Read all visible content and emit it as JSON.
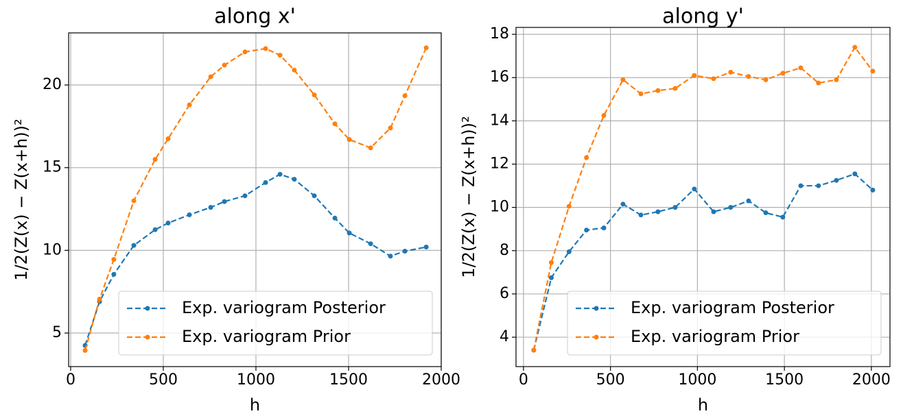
{
  "chart_data": [
    {
      "type": "line",
      "title": "along x'",
      "xlabel": "h",
      "ylabel": "1/2(Z(x) − Z(x+h))²",
      "x": [
        78,
        156,
        233,
        341,
        456,
        526,
        641,
        756,
        830,
        941,
        1052,
        1130,
        1207,
        1315,
        1426,
        1504,
        1619,
        1726,
        1804,
        1919
      ],
      "series": [
        {
          "name": "Exp. variogram Posterior",
          "color": "#1f77b4",
          "values": [
            4.25,
            6.9,
            8.55,
            10.3,
            11.25,
            11.65,
            12.15,
            12.6,
            12.95,
            13.3,
            14.1,
            14.6,
            14.3,
            13.3,
            11.95,
            11.05,
            10.4,
            9.65,
            9.95,
            10.2
          ]
        },
        {
          "name": "Exp. variogram Prior",
          "color": "#ff7f0e",
          "values": [
            3.95,
            7.05,
            9.45,
            13.0,
            15.5,
            16.75,
            18.8,
            20.5,
            21.2,
            22.0,
            22.2,
            21.8,
            20.9,
            19.4,
            17.65,
            16.7,
            16.2,
            17.4,
            19.35,
            22.25
          ]
        }
      ],
      "xlim": [
        -11,
        2000
      ],
      "xticks": [
        0,
        500,
        1000,
        1500,
        2000
      ],
      "ylim": [
        2.97,
        23.15
      ],
      "yticks": [
        5,
        10,
        15,
        20
      ],
      "grid": true,
      "legend": "lower right"
    },
    {
      "type": "line",
      "title": "along y'",
      "xlabel": "h",
      "ylabel": "1/2(Z(x) − Z(x+h))²",
      "x": [
        59,
        160,
        262,
        362,
        462,
        572,
        675,
        773,
        872,
        982,
        1093,
        1191,
        1294,
        1393,
        1491,
        1594,
        1696,
        1799,
        1905,
        2008
      ],
      "series": [
        {
          "name": "Exp. variogram Posterior",
          "color": "#1f77b4",
          "values": [
            3.4,
            6.75,
            7.95,
            8.95,
            9.05,
            10.15,
            9.65,
            9.8,
            10.0,
            10.85,
            9.8,
            10.0,
            10.3,
            9.75,
            9.55,
            11.0,
            11.0,
            11.25,
            11.55,
            10.8
          ]
        },
        {
          "name": "Exp. variogram Prior",
          "color": "#ff7f0e",
          "values": [
            3.4,
            7.45,
            10.05,
            12.3,
            14.25,
            15.9,
            15.25,
            15.4,
            15.5,
            16.1,
            15.95,
            16.25,
            16.05,
            15.9,
            16.2,
            16.45,
            15.75,
            15.9,
            17.4,
            16.3
          ]
        }
      ],
      "xlim": [
        -43,
        2107
      ],
      "xticks": [
        0,
        500,
        1000,
        1500,
        2000
      ],
      "ylim": [
        2.64,
        18.32
      ],
      "yticks": [
        4,
        6,
        8,
        10,
        12,
        14,
        16,
        18
      ],
      "grid": true,
      "legend": "lower right"
    }
  ]
}
